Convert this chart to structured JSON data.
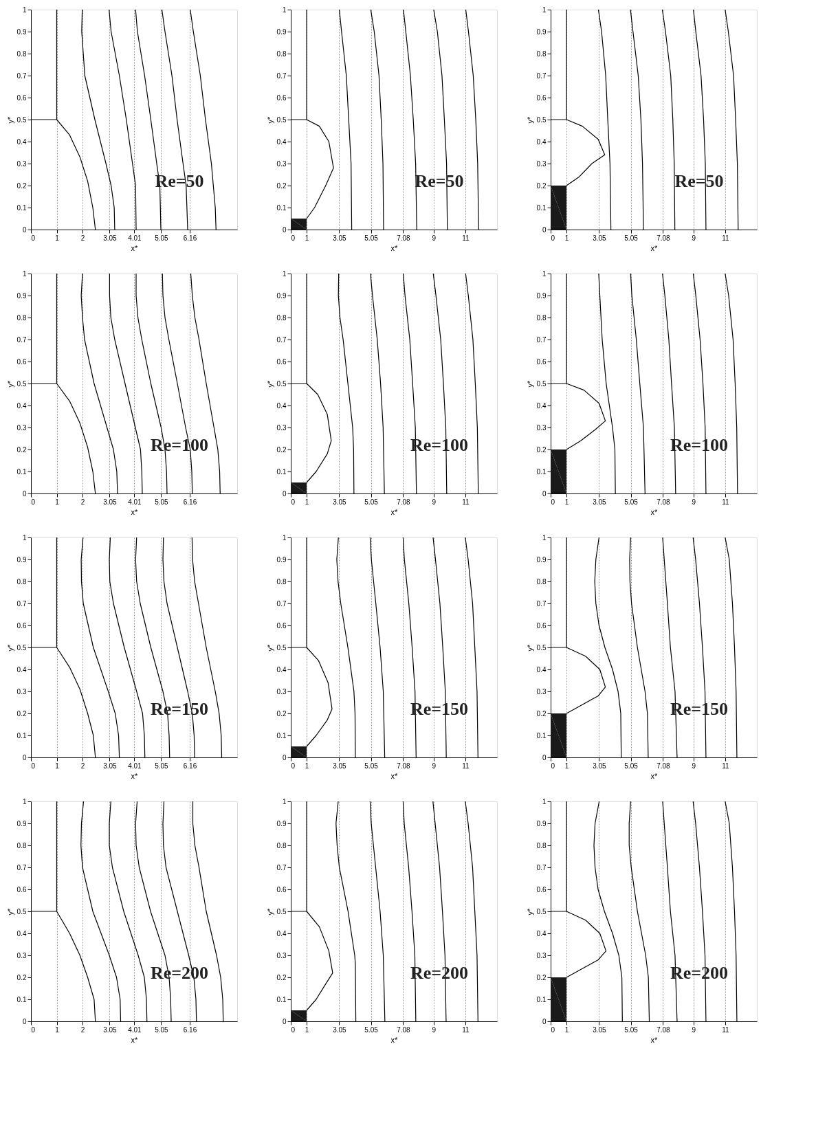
{
  "chart_data": [
    {
      "type": "line",
      "xlabel": "x*",
      "ylabel": "y*",
      "annotations": [
        "Re=50"
      ],
      "xlim": [
        0,
        8
      ],
      "ylim": [
        0,
        1
      ],
      "xticks": [
        0,
        1,
        2,
        3.05,
        4.01,
        5.05,
        6.16
      ],
      "yticks": [
        0,
        0.1,
        0.2,
        0.3,
        0.4,
        0.5,
        0.6,
        0.7,
        0.8,
        0.9,
        1
      ],
      "grid": "x",
      "series": [
        {
          "color": "#000000",
          "x": [
            0,
            1,
            1
          ],
          "values": [
            0.5,
            0.5,
            1
          ]
        },
        {
          "color": "#000000",
          "x": [
            1,
            1.5,
            1.9,
            2.2,
            2.4,
            2.5
          ],
          "values": [
            0.5,
            0.43,
            0.33,
            0.22,
            0.1,
            0
          ]
        },
        {
          "color": "#000000",
          "x": [
            1.99,
            1.97,
            2.09,
            2.48,
            2.91,
            3.11,
            3.23,
            3.25
          ],
          "values": [
            1,
            0.9,
            0.7,
            0.5,
            0.3,
            0.2,
            0.1,
            0
          ]
        },
        {
          "color": "#000000",
          "x": [
            3.03,
            3.11,
            3.43,
            3.7,
            3.94,
            4.06,
            4.08
          ],
          "values": [
            1,
            0.9,
            0.7,
            0.5,
            0.3,
            0.2,
            0
          ]
        },
        {
          "color": "#000000",
          "x": [
            4.06,
            4.13,
            4.41,
            4.65,
            4.88,
            5.0,
            5.04
          ],
          "values": [
            1,
            0.9,
            0.7,
            0.5,
            0.3,
            0.2,
            0
          ]
        },
        {
          "color": "#000000",
          "x": [
            5.08,
            5.2,
            5.47,
            5.67,
            5.9,
            6.02,
            6.08
          ],
          "values": [
            1,
            0.9,
            0.7,
            0.5,
            0.3,
            0.2,
            0
          ]
        },
        {
          "color": "#000000",
          "x": [
            6.18,
            6.3,
            6.57,
            6.77,
            7.0,
            7.15,
            7.18
          ],
          "values": [
            1,
            0.9,
            0.7,
            0.5,
            0.3,
            0.1,
            0
          ]
        }
      ]
    },
    {
      "type": "line",
      "xlabel": "x*",
      "ylabel": "y*",
      "annotations": [
        "Re=50"
      ],
      "xlim": [
        0,
        13
      ],
      "ylim": [
        0,
        1
      ],
      "xticks": [
        0,
        1,
        3.05,
        5.05,
        7.08,
        9,
        11
      ],
      "yticks": [
        0,
        0.1,
        0.2,
        0.3,
        0.4,
        0.5,
        0.6,
        0.7,
        0.8,
        0.9,
        1
      ],
      "grid": "x",
      "series": [
        {
          "type": "area",
          "color": "#1a1a1a",
          "x": [
            0,
            1
          ],
          "values": [
            0.05,
            0.05
          ]
        },
        {
          "color": "#000000",
          "x": [
            0,
            1,
            1
          ],
          "values": [
            0.5,
            0.5,
            1
          ]
        },
        {
          "color": "#000000",
          "x": [
            1,
            1.5,
            2.2,
            2.69,
            2.4,
            1.8,
            1
          ],
          "values": [
            0.05,
            0.1,
            0.2,
            0.28,
            0.4,
            0.47,
            0.5
          ]
        },
        {
          "color": "#000000",
          "x": [
            3.06,
            3.2,
            3.5,
            3.65,
            3.8,
            3.84
          ],
          "values": [
            1,
            0.9,
            0.7,
            0.5,
            0.3,
            0
          ]
        },
        {
          "color": "#000000",
          "x": [
            5.04,
            5.26,
            5.56,
            5.7,
            5.81,
            5.85
          ],
          "values": [
            1,
            0.9,
            0.7,
            0.5,
            0.3,
            0
          ]
        },
        {
          "color": "#000000",
          "x": [
            7.1,
            7.25,
            7.54,
            7.72,
            7.87,
            7.94
          ],
          "values": [
            1,
            0.9,
            0.7,
            0.5,
            0.3,
            0
          ]
        },
        {
          "color": "#000000",
          "x": [
            9.01,
            9.24,
            9.53,
            9.68,
            9.82,
            9.87
          ],
          "values": [
            1,
            0.9,
            0.7,
            0.5,
            0.3,
            0
          ]
        },
        {
          "color": "#000000",
          "x": [
            11.03,
            11.2,
            11.5,
            11.66,
            11.78,
            11.84
          ],
          "values": [
            1,
            0.9,
            0.7,
            0.5,
            0.3,
            0
          ]
        }
      ]
    },
    {
      "type": "line",
      "xlabel": "x*",
      "ylabel": "y*",
      "annotations": [
        "Re=50"
      ],
      "xlim": [
        0,
        13
      ],
      "ylim": [
        0,
        1
      ],
      "xticks": [
        0,
        1,
        3.05,
        5.05,
        7.08,
        9,
        11
      ],
      "yticks": [
        0,
        0.1,
        0.2,
        0.3,
        0.4,
        0.5,
        0.6,
        0.7,
        0.8,
        0.9,
        1
      ],
      "grid": "x",
      "series": [
        {
          "type": "area",
          "color": "#1a1a1a",
          "x": [
            0,
            1
          ],
          "values": [
            0.2,
            0.2
          ]
        },
        {
          "color": "#000000",
          "x": [
            0,
            1,
            1
          ],
          "values": [
            0.5,
            0.5,
            1
          ]
        },
        {
          "color": "#000000",
          "x": [
            1,
            1.8,
            2.6,
            3.41,
            3.0,
            2.0,
            1
          ],
          "values": [
            0.2,
            0.24,
            0.3,
            0.34,
            0.41,
            0.47,
            0.5
          ]
        },
        {
          "color": "#000000",
          "x": [
            3.01,
            3.21,
            3.47,
            3.6,
            3.74,
            3.8
          ],
          "values": [
            1,
            0.9,
            0.7,
            0.5,
            0.3,
            0
          ]
        },
        {
          "color": "#000000",
          "x": [
            5.03,
            5.19,
            5.52,
            5.69,
            5.79,
            5.85
          ],
          "values": [
            1,
            0.9,
            0.7,
            0.5,
            0.3,
            0
          ]
        },
        {
          "color": "#000000",
          "x": [
            7.04,
            7.24,
            7.57,
            7.7,
            7.79,
            7.83
          ],
          "values": [
            1,
            0.9,
            0.7,
            0.5,
            0.3,
            0
          ]
        },
        {
          "color": "#000000",
          "x": [
            9.0,
            9.15,
            9.48,
            9.64,
            9.75,
            9.79
          ],
          "values": [
            1,
            0.9,
            0.7,
            0.5,
            0.3,
            0
          ]
        },
        {
          "color": "#000000",
          "x": [
            11.0,
            11.2,
            11.53,
            11.66,
            11.77,
            11.82
          ],
          "values": [
            1,
            0.9,
            0.7,
            0.5,
            0.3,
            0
          ]
        }
      ]
    },
    {
      "type": "line",
      "xlabel": "x*",
      "ylabel": "y*",
      "annotations": [
        "Re=100"
      ],
      "xlim": [
        0,
        8
      ],
      "ylim": [
        0,
        1
      ],
      "xticks": [
        0,
        1,
        2,
        3.05,
        4.01,
        5.05,
        6.16
      ],
      "yticks": [
        0,
        0.1,
        0.2,
        0.3,
        0.4,
        0.5,
        0.6,
        0.7,
        0.8,
        0.9,
        1
      ],
      "grid": "x",
      "series": [
        {
          "color": "#000000",
          "x": [
            0,
            1,
            1
          ],
          "values": [
            0.5,
            0.5,
            1
          ]
        },
        {
          "color": "#000000",
          "x": [
            1,
            1.5,
            1.9,
            2.2,
            2.4,
            2.5
          ],
          "values": [
            0.5,
            0.42,
            0.32,
            0.21,
            0.1,
            0
          ]
        },
        {
          "color": "#000000",
          "x": [
            2.0,
            1.95,
            2.0,
            2.08,
            2.45,
            2.95,
            3.2,
            3.33,
            3.36
          ],
          "values": [
            1,
            0.9,
            0.8,
            0.7,
            0.5,
            0.3,
            0.2,
            0.1,
            0
          ]
        },
        {
          "color": "#000000",
          "x": [
            3.05,
            3.05,
            3.1,
            3.25,
            3.65,
            4.05,
            4.25,
            4.3,
            4.32
          ],
          "values": [
            1,
            0.9,
            0.8,
            0.7,
            0.5,
            0.3,
            0.2,
            0.1,
            0
          ]
        },
        {
          "color": "#000000",
          "x": [
            4.08,
            4.08,
            4.15,
            4.3,
            4.65,
            5.05,
            5.2,
            5.26,
            5.28
          ],
          "values": [
            1,
            0.9,
            0.8,
            0.7,
            0.5,
            0.3,
            0.2,
            0.1,
            0
          ]
        },
        {
          "color": "#000000",
          "x": [
            5.1,
            5.12,
            5.2,
            5.35,
            5.68,
            6.0,
            6.18,
            6.24,
            6.26
          ],
          "values": [
            1,
            0.9,
            0.8,
            0.7,
            0.5,
            0.3,
            0.2,
            0.1,
            0
          ]
        },
        {
          "color": "#000000",
          "x": [
            6.2,
            6.26,
            6.36,
            6.52,
            6.8,
            7.1,
            7.25,
            7.32,
            7.34
          ],
          "values": [
            1,
            0.9,
            0.8,
            0.7,
            0.5,
            0.3,
            0.2,
            0.1,
            0
          ]
        }
      ]
    },
    {
      "type": "line",
      "xlabel": "x*",
      "ylabel": "y*",
      "annotations": [
        "Re=100"
      ],
      "xlim": [
        0,
        13
      ],
      "ylim": [
        0,
        1
      ],
      "xticks": [
        0,
        1,
        3.05,
        5.05,
        7.08,
        9,
        11
      ],
      "yticks": [
        0,
        0.1,
        0.2,
        0.3,
        0.4,
        0.5,
        0.6,
        0.7,
        0.8,
        0.9,
        1
      ],
      "grid": "x",
      "series": [
        {
          "type": "area",
          "color": "#1a1a1a",
          "x": [
            0,
            1
          ],
          "values": [
            0.05,
            0.05
          ]
        },
        {
          "color": "#000000",
          "x": [
            0,
            1,
            1
          ],
          "values": [
            0.5,
            0.5,
            1
          ]
        },
        {
          "color": "#000000",
          "x": [
            1,
            1.6,
            2.3,
            2.55,
            2.3,
            1.7,
            1
          ],
          "values": [
            0.05,
            0.1,
            0.18,
            0.24,
            0.36,
            0.45,
            0.5
          ]
        },
        {
          "color": "#000000",
          "x": [
            3.02,
            3.0,
            3.1,
            3.3,
            3.6,
            3.9,
            3.96,
            3.98
          ],
          "values": [
            1,
            0.9,
            0.8,
            0.7,
            0.5,
            0.3,
            0.2,
            0
          ]
        },
        {
          "color": "#000000",
          "x": [
            5.02,
            5.15,
            5.45,
            5.66,
            5.82,
            5.9
          ],
          "values": [
            1,
            0.9,
            0.7,
            0.5,
            0.3,
            0
          ]
        },
        {
          "color": "#000000",
          "x": [
            7.09,
            7.2,
            7.5,
            7.68,
            7.85,
            7.92
          ],
          "values": [
            1,
            0.9,
            0.7,
            0.5,
            0.3,
            0
          ]
        },
        {
          "color": "#000000",
          "x": [
            8.98,
            9.15,
            9.45,
            9.62,
            9.77,
            9.83
          ],
          "values": [
            1,
            0.9,
            0.7,
            0.5,
            0.3,
            0
          ]
        },
        {
          "color": "#000000",
          "x": [
            11.02,
            11.19,
            11.48,
            11.63,
            11.76,
            11.82
          ],
          "values": [
            1,
            0.9,
            0.7,
            0.5,
            0.3,
            0
          ]
        }
      ]
    },
    {
      "type": "line",
      "xlabel": "x*",
      "ylabel": "y*",
      "annotations": [
        "Re=100"
      ],
      "xlim": [
        0,
        13
      ],
      "ylim": [
        0,
        1
      ],
      "xticks": [
        0,
        1,
        3.05,
        5.05,
        7.08,
        9,
        11
      ],
      "yticks": [
        0,
        0.1,
        0.2,
        0.3,
        0.4,
        0.5,
        0.6,
        0.7,
        0.8,
        0.9,
        1
      ],
      "grid": "x",
      "series": [
        {
          "type": "area",
          "color": "#1a1a1a",
          "x": [
            0,
            1
          ],
          "values": [
            0.2,
            0.2
          ]
        },
        {
          "color": "#000000",
          "x": [
            0,
            1,
            1
          ],
          "values": [
            0.5,
            0.5,
            1
          ]
        },
        {
          "color": "#000000",
          "x": [
            1,
            1.9,
            2.8,
            3.45,
            3.05,
            2.1,
            1
          ],
          "values": [
            0.2,
            0.24,
            0.29,
            0.33,
            0.41,
            0.47,
            0.5
          ]
        },
        {
          "color": "#000000",
          "x": [
            3.03,
            3.1,
            3.25,
            3.5,
            3.9,
            4.05,
            4.08
          ],
          "values": [
            1,
            0.9,
            0.7,
            0.5,
            0.3,
            0.2,
            0
          ]
        },
        {
          "color": "#000000",
          "x": [
            5.04,
            5.12,
            5.4,
            5.62,
            5.85,
            5.95
          ],
          "values": [
            1,
            0.9,
            0.7,
            0.5,
            0.3,
            0
          ]
        },
        {
          "color": "#000000",
          "x": [
            7.05,
            7.2,
            7.45,
            7.62,
            7.8,
            7.88
          ],
          "values": [
            1,
            0.9,
            0.7,
            0.5,
            0.3,
            0
          ]
        },
        {
          "color": "#000000",
          "x": [
            8.99,
            9.15,
            9.42,
            9.6,
            9.74,
            9.79
          ],
          "values": [
            1,
            0.9,
            0.7,
            0.5,
            0.3,
            0
          ]
        },
        {
          "color": "#000000",
          "x": [
            11.0,
            11.22,
            11.5,
            11.63,
            11.73,
            11.78
          ],
          "values": [
            1,
            0.9,
            0.7,
            0.5,
            0.3,
            0
          ]
        }
      ]
    },
    {
      "type": "line",
      "xlabel": "x*",
      "ylabel": "y*",
      "annotations": [
        "Re=150"
      ],
      "xlim": [
        0,
        8
      ],
      "ylim": [
        0,
        1
      ],
      "xticks": [
        0,
        1,
        2,
        3.05,
        4.01,
        5.05,
        6.16
      ],
      "yticks": [
        0,
        0.1,
        0.2,
        0.3,
        0.4,
        0.5,
        0.6,
        0.7,
        0.8,
        0.9,
        1
      ],
      "grid": "x",
      "series": [
        {
          "color": "#000000",
          "x": [
            0,
            1,
            1
          ],
          "values": [
            0.5,
            0.5,
            1
          ]
        },
        {
          "color": "#000000",
          "x": [
            1,
            1.5,
            1.9,
            2.2,
            2.42,
            2.5
          ],
          "values": [
            0.5,
            0.41,
            0.31,
            0.2,
            0.1,
            0
          ]
        },
        {
          "color": "#000000",
          "x": [
            2.02,
            1.95,
            1.96,
            2.03,
            2.42,
            3.0,
            3.27,
            3.4,
            3.43
          ],
          "values": [
            1,
            0.9,
            0.8,
            0.7,
            0.5,
            0.3,
            0.2,
            0.1,
            0
          ]
        },
        {
          "color": "#000000",
          "x": [
            3.08,
            3.04,
            3.06,
            3.2,
            3.62,
            4.1,
            4.33,
            4.4,
            4.42
          ],
          "values": [
            1,
            0.9,
            0.8,
            0.7,
            0.5,
            0.3,
            0.2,
            0.1,
            0
          ]
        },
        {
          "color": "#000000",
          "x": [
            4.1,
            4.06,
            4.1,
            4.24,
            4.65,
            5.12,
            5.3,
            5.36,
            5.38
          ],
          "values": [
            1,
            0.9,
            0.8,
            0.7,
            0.5,
            0.3,
            0.2,
            0.1,
            0
          ]
        },
        {
          "color": "#000000",
          "x": [
            5.14,
            5.12,
            5.16,
            5.28,
            5.68,
            6.08,
            6.26,
            6.33,
            6.35
          ],
          "values": [
            1,
            0.9,
            0.8,
            0.7,
            0.5,
            0.3,
            0.2,
            0.1,
            0
          ]
        },
        {
          "color": "#000000",
          "x": [
            6.25,
            6.27,
            6.35,
            6.5,
            6.8,
            7.15,
            7.3,
            7.38,
            7.4
          ],
          "values": [
            1,
            0.9,
            0.8,
            0.7,
            0.5,
            0.3,
            0.2,
            0.1,
            0
          ]
        }
      ]
    },
    {
      "type": "line",
      "xlabel": "x*",
      "ylabel": "y*",
      "annotations": [
        "Re=150"
      ],
      "xlim": [
        0,
        13
      ],
      "ylim": [
        0,
        1
      ],
      "xticks": [
        0,
        1,
        3.05,
        5.05,
        7.08,
        9,
        11
      ],
      "yticks": [
        0,
        0.1,
        0.2,
        0.3,
        0.4,
        0.5,
        0.6,
        0.7,
        0.8,
        0.9,
        1
      ],
      "grid": "x",
      "series": [
        {
          "type": "area",
          "color": "#1a1a1a",
          "x": [
            0,
            1
          ],
          "values": [
            0.05,
            0.05
          ]
        },
        {
          "color": "#000000",
          "x": [
            0,
            1,
            1
          ],
          "values": [
            0.5,
            0.5,
            1
          ]
        },
        {
          "color": "#000000",
          "x": [
            1,
            1.6,
            2.3,
            2.6,
            2.35,
            1.75,
            1
          ],
          "values": [
            0.05,
            0.1,
            0.17,
            0.22,
            0.34,
            0.44,
            0.5
          ]
        },
        {
          "color": "#000000",
          "x": [
            3.0,
            2.9,
            2.98,
            3.15,
            3.6,
            3.98,
            4.05,
            4.07
          ],
          "values": [
            1,
            0.9,
            0.8,
            0.7,
            0.5,
            0.3,
            0.2,
            0
          ]
        },
        {
          "color": "#000000",
          "x": [
            5.0,
            5.08,
            5.36,
            5.63,
            5.83,
            5.92
          ],
          "values": [
            1,
            0.9,
            0.7,
            0.5,
            0.3,
            0
          ]
        },
        {
          "color": "#000000",
          "x": [
            7.08,
            7.16,
            7.44,
            7.65,
            7.83,
            7.9
          ],
          "values": [
            1,
            0.9,
            0.7,
            0.5,
            0.3,
            0
          ]
        },
        {
          "color": "#000000",
          "x": [
            8.97,
            9.12,
            9.4,
            9.58,
            9.74,
            9.8
          ],
          "values": [
            1,
            0.9,
            0.7,
            0.5,
            0.3,
            0
          ]
        },
        {
          "color": "#000000",
          "x": [
            11.0,
            11.18,
            11.46,
            11.6,
            11.74,
            11.8
          ],
          "values": [
            1,
            0.9,
            0.7,
            0.5,
            0.3,
            0
          ]
        }
      ]
    },
    {
      "type": "line",
      "xlabel": "x*",
      "ylabel": "y*",
      "annotations": [
        "Re=150"
      ],
      "xlim": [
        0,
        13
      ],
      "ylim": [
        0,
        1
      ],
      "xticks": [
        0,
        1,
        3.05,
        5.05,
        7.08,
        9,
        11
      ],
      "yticks": [
        0,
        0.1,
        0.2,
        0.3,
        0.4,
        0.5,
        0.6,
        0.7,
        0.8,
        0.9,
        1
      ],
      "grid": "x",
      "series": [
        {
          "type": "area",
          "color": "#1a1a1a",
          "x": [
            0,
            1
          ],
          "values": [
            0.2,
            0.2
          ]
        },
        {
          "color": "#000000",
          "x": [
            0,
            1,
            1
          ],
          "values": [
            0.5,
            0.5,
            1
          ]
        },
        {
          "color": "#000000",
          "x": [
            1,
            2,
            3,
            3.45,
            3.1,
            2.2,
            1
          ],
          "values": [
            0.2,
            0.24,
            0.28,
            0.32,
            0.4,
            0.46,
            0.5
          ]
        },
        {
          "color": "#000000",
          "x": [
            3.05,
            2.85,
            2.78,
            2.85,
            3.05,
            3.42,
            3.9,
            4.25,
            4.42,
            4.45
          ],
          "values": [
            1,
            0.9,
            0.8,
            0.7,
            0.6,
            0.5,
            0.4,
            0.3,
            0.2,
            0
          ]
        },
        {
          "color": "#000000",
          "x": [
            5.04,
            4.98,
            5.0,
            5.1,
            5.47,
            5.95,
            6.1,
            6.15
          ],
          "values": [
            1,
            0.9,
            0.8,
            0.7,
            0.5,
            0.3,
            0.2,
            0
          ]
        },
        {
          "color": "#000000",
          "x": [
            7.06,
            7.16,
            7.36,
            7.55,
            7.84,
            7.97
          ],
          "values": [
            1,
            0.9,
            0.7,
            0.5,
            0.3,
            0
          ]
        },
        {
          "color": "#000000",
          "x": [
            8.98,
            9.14,
            9.38,
            9.57,
            9.73,
            9.79
          ],
          "values": [
            1,
            0.9,
            0.7,
            0.5,
            0.3,
            0
          ]
        },
        {
          "color": "#000000",
          "x": [
            11.0,
            11.26,
            11.46,
            11.59,
            11.69,
            11.74
          ],
          "values": [
            1,
            0.9,
            0.7,
            0.5,
            0.3,
            0
          ]
        }
      ]
    },
    {
      "type": "line",
      "xlabel": "x*",
      "ylabel": "y*",
      "annotations": [
        "Re=200"
      ],
      "xlim": [
        0,
        8
      ],
      "ylim": [
        0,
        1
      ],
      "xticks": [
        0,
        1,
        2,
        3.05,
        4.01,
        5.05,
        6.16
      ],
      "yticks": [
        0,
        0.1,
        0.2,
        0.3,
        0.4,
        0.5,
        0.6,
        0.7,
        0.8,
        0.9,
        1
      ],
      "grid": "x",
      "series": [
        {
          "color": "#000000",
          "x": [
            0,
            1,
            1
          ],
          "values": [
            0.5,
            0.5,
            1
          ]
        },
        {
          "color": "#000000",
          "x": [
            1,
            1.5,
            1.9,
            2.2,
            2.45,
            2.5
          ],
          "values": [
            0.5,
            0.4,
            0.3,
            0.2,
            0.1,
            0
          ]
        },
        {
          "color": "#000000",
          "x": [
            2.04,
            1.96,
            1.94,
            2.0,
            2.4,
            3.04,
            3.32,
            3.46,
            3.48
          ],
          "values": [
            1,
            0.9,
            0.8,
            0.7,
            0.5,
            0.3,
            0.2,
            0.1,
            0
          ]
        },
        {
          "color": "#000000",
          "x": [
            3.1,
            3.04,
            3.04,
            3.16,
            3.6,
            4.16,
            4.4,
            4.48,
            4.5
          ],
          "values": [
            1,
            0.9,
            0.8,
            0.7,
            0.5,
            0.3,
            0.2,
            0.1,
            0
          ]
        },
        {
          "color": "#000000",
          "x": [
            4.12,
            4.06,
            4.08,
            4.2,
            4.64,
            5.2,
            5.36,
            5.42,
            5.44
          ],
          "values": [
            1,
            0.9,
            0.8,
            0.7,
            0.5,
            0.3,
            0.2,
            0.1,
            0
          ]
        },
        {
          "color": "#000000",
          "x": [
            5.16,
            5.12,
            5.14,
            5.24,
            5.68,
            6.12,
            6.32,
            6.4,
            6.42
          ],
          "values": [
            1,
            0.9,
            0.8,
            0.7,
            0.5,
            0.3,
            0.2,
            0.1,
            0
          ]
        },
        {
          "color": "#000000",
          "x": [
            6.28,
            6.28,
            6.36,
            6.52,
            6.8,
            7.2,
            7.36,
            7.44,
            7.46
          ],
          "values": [
            1,
            0.9,
            0.8,
            0.7,
            0.5,
            0.3,
            0.2,
            0.1,
            0
          ]
        }
      ]
    },
    {
      "type": "line",
      "xlabel": "x*",
      "ylabel": "y*",
      "annotations": [
        "Re=200"
      ],
      "xlim": [
        0,
        13
      ],
      "ylim": [
        0,
        1
      ],
      "xticks": [
        0,
        1,
        3.05,
        5.05,
        7.08,
        9,
        11
      ],
      "yticks": [
        0,
        0.1,
        0.2,
        0.3,
        0.4,
        0.5,
        0.6,
        0.7,
        0.8,
        0.9,
        1
      ],
      "grid": "x",
      "series": [
        {
          "type": "area",
          "color": "#1a1a1a",
          "x": [
            0,
            1
          ],
          "values": [
            0.05,
            0.05
          ]
        },
        {
          "color": "#000000",
          "x": [
            0,
            1,
            1
          ],
          "values": [
            0.5,
            0.5,
            1
          ]
        },
        {
          "color": "#000000",
          "x": [
            1,
            1.6,
            2.2,
            2.64,
            2.4,
            1.8,
            1
          ],
          "values": [
            0.05,
            0.1,
            0.17,
            0.22,
            0.32,
            0.43,
            0.5
          ]
        },
        {
          "color": "#000000",
          "x": [
            2.99,
            2.85,
            2.92,
            3.06,
            3.61,
            4.03,
            4.07,
            4.1
          ],
          "values": [
            1,
            0.9,
            0.8,
            0.7,
            0.5,
            0.3,
            0.26,
            0
          ]
        },
        {
          "color": "#000000",
          "x": [
            5.0,
            5.07,
            5.35,
            5.63,
            5.83,
            5.93
          ],
          "values": [
            1,
            0.9,
            0.7,
            0.5,
            0.3,
            0
          ]
        },
        {
          "color": "#000000",
          "x": [
            7.08,
            7.15,
            7.43,
            7.64,
            7.82,
            7.88
          ],
          "values": [
            1,
            0.9,
            0.7,
            0.5,
            0.3,
            0
          ]
        },
        {
          "color": "#000000",
          "x": [
            8.96,
            9.1,
            9.38,
            9.56,
            9.72,
            9.79
          ],
          "values": [
            1,
            0.9,
            0.7,
            0.5,
            0.3,
            0
          ]
        },
        {
          "color": "#000000",
          "x": [
            11.0,
            11.18,
            11.46,
            11.6,
            11.74,
            11.8
          ],
          "values": [
            1,
            0.9,
            0.7,
            0.5,
            0.3,
            0
          ]
        }
      ]
    },
    {
      "type": "line",
      "xlabel": "x*",
      "ylabel": "y*",
      "annotations": [
        "Re=200"
      ],
      "xlim": [
        0,
        13
      ],
      "ylim": [
        0,
        1
      ],
      "xticks": [
        0,
        1,
        3.05,
        5.05,
        7.08,
        9,
        11
      ],
      "yticks": [
        0,
        0.1,
        0.2,
        0.3,
        0.4,
        0.5,
        0.6,
        0.7,
        0.8,
        0.9,
        1
      ],
      "grid": "x",
      "series": [
        {
          "type": "area",
          "color": "#1a1a1a",
          "x": [
            0,
            1
          ],
          "values": [
            0.2,
            0.2
          ]
        },
        {
          "color": "#000000",
          "x": [
            0,
            1,
            1
          ],
          "values": [
            0.5,
            0.5,
            1
          ]
        },
        {
          "color": "#000000",
          "x": [
            1,
            2,
            3,
            3.49,
            3.1,
            2.2,
            1
          ],
          "values": [
            0.2,
            0.24,
            0.28,
            0.32,
            0.4,
            0.46,
            0.5
          ]
        },
        {
          "color": "#000000",
          "x": [
            3.06,
            2.8,
            2.73,
            2.8,
            2.99,
            3.39,
            3.9,
            4.3,
            4.49,
            4.52
          ],
          "values": [
            1,
            0.9,
            0.8,
            0.7,
            0.6,
            0.5,
            0.4,
            0.3,
            0.2,
            0
          ]
        },
        {
          "color": "#000000",
          "x": [
            5.04,
            4.95,
            4.95,
            5.08,
            5.47,
            5.99,
            6.16,
            6.22
          ],
          "values": [
            1,
            0.9,
            0.8,
            0.7,
            0.5,
            0.3,
            0.2,
            0
          ]
        },
        {
          "color": "#000000",
          "x": [
            7.06,
            7.16,
            7.36,
            7.55,
            7.84,
            7.97
          ],
          "values": [
            1,
            0.9,
            0.7,
            0.5,
            0.3,
            0
          ]
        },
        {
          "color": "#000000",
          "x": [
            8.98,
            9.14,
            9.38,
            9.57,
            9.73,
            9.79
          ],
          "values": [
            1,
            0.9,
            0.7,
            0.5,
            0.3,
            0
          ]
        },
        {
          "color": "#000000",
          "x": [
            11.0,
            11.26,
            11.46,
            11.59,
            11.69,
            11.74
          ],
          "values": [
            1,
            0.9,
            0.7,
            0.5,
            0.3,
            0
          ]
        }
      ]
    }
  ]
}
